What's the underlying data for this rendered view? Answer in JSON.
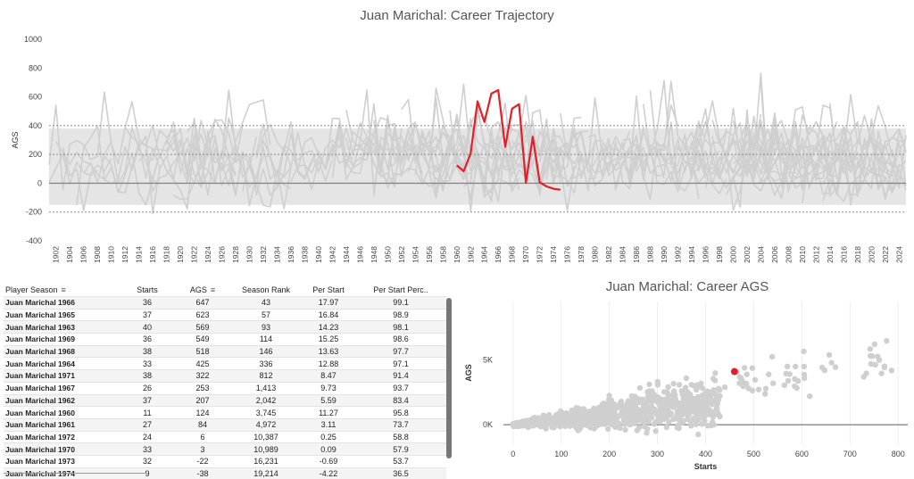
{
  "chart_data": [
    {
      "type": "line",
      "title": "Juan Marichal: Career Trajectory",
      "ylabel": "AGS",
      "ylim": [
        -400,
        1000
      ],
      "yticks": [
        -400,
        -200,
        0,
        200,
        400,
        600,
        800,
        1000
      ],
      "xlim": [
        1901,
        2025
      ],
      "xticks": [
        1902,
        1904,
        1906,
        1908,
        1910,
        1912,
        1914,
        1916,
        1918,
        1920,
        1922,
        1924,
        1926,
        1928,
        1930,
        1932,
        1934,
        1936,
        1938,
        1940,
        1942,
        1944,
        1946,
        1948,
        1950,
        1952,
        1954,
        1956,
        1958,
        1960,
        1962,
        1964,
        1966,
        1968,
        1970,
        1972,
        1974,
        1976,
        1978,
        1980,
        1982,
        1984,
        1986,
        1988,
        1990,
        1992,
        1994,
        1996,
        1998,
        2000,
        2002,
        2004,
        2006,
        2008,
        2010,
        2012,
        2014,
        2016,
        2018,
        2020,
        2022,
        2024
      ],
      "reference_lines": [
        -200,
        200,
        400
      ],
      "zero_line": 0,
      "background_series_color": "#cfcfcf",
      "highlight_color": "#e0202b",
      "series": [
        {
          "name": "Juan Marichal",
          "x": [
            1960,
            1961,
            1962,
            1963,
            1964,
            1965,
            1966,
            1967,
            1968,
            1969,
            1970,
            1971,
            1972,
            1973,
            1974,
            1975
          ],
          "values": [
            124,
            84,
            207,
            569,
            425,
            623,
            647,
            253,
            518,
            549,
            3,
            322,
            6,
            -22,
            -38,
            -45
          ]
        }
      ]
    },
    {
      "type": "scatter",
      "title": "Juan Marichal: Career AGS",
      "xlabel": "Starts",
      "ylabel": "AGS",
      "xlim": [
        -20,
        820
      ],
      "ylim": [
        -1500,
        9500
      ],
      "xticks": [
        0,
        100,
        200,
        300,
        400,
        500,
        600,
        700,
        800
      ],
      "yticks": [
        0,
        5000
      ],
      "ytick_labels": [
        "0K",
        "5K"
      ],
      "point_color": "#cfcfcf",
      "highlight_color": "#e0202b",
      "highlight_point": {
        "x": 460,
        "y": 4100
      }
    }
  ],
  "table": {
    "columns": [
      "Player Season",
      "Starts",
      "AGS",
      "Season Rank",
      "Per Start",
      "Per Start Perc.."
    ],
    "rows": [
      [
        "Juan Marichal 1966",
        "36",
        "647",
        "43",
        "17.97",
        "99.1"
      ],
      [
        "Juan Marichal 1965",
        "37",
        "623",
        "57",
        "16.84",
        "98.9"
      ],
      [
        "Juan Marichal 1963",
        "40",
        "569",
        "93",
        "14.23",
        "98.1"
      ],
      [
        "Juan Marichal 1969",
        "36",
        "549",
        "114",
        "15.25",
        "98.6"
      ],
      [
        "Juan Marichal 1968",
        "38",
        "518",
        "146",
        "13.63",
        "97.7"
      ],
      [
        "Juan Marichal 1964",
        "33",
        "425",
        "336",
        "12.88",
        "97.1"
      ],
      [
        "Juan Marichal 1971",
        "38",
        "322",
        "812",
        "8.47",
        "91.4"
      ],
      [
        "Juan Marichal 1967",
        "26",
        "253",
        "1,413",
        "9.73",
        "93.7"
      ],
      [
        "Juan Marichal 1962",
        "37",
        "207",
        "2,042",
        "5.59",
        "83.4"
      ],
      [
        "Juan Marichal 1960",
        "11",
        "124",
        "3,745",
        "11.27",
        "95.8"
      ],
      [
        "Juan Marichal 1961",
        "27",
        "84",
        "4,972",
        "3.11",
        "73.7"
      ],
      [
        "Juan Marichal 1972",
        "24",
        "6",
        "10,387",
        "0.25",
        "58.8"
      ],
      [
        "Juan Marichal 1970",
        "33",
        "3",
        "10,989",
        "0.09",
        "57.9"
      ],
      [
        "Juan Marichal 1973",
        "32",
        "-22",
        "16,231",
        "-0.69",
        "53.7"
      ],
      [
        "Juan Marichal 1974",
        "9",
        "-38",
        "19,214",
        "-4.22",
        "36.5"
      ]
    ]
  }
}
